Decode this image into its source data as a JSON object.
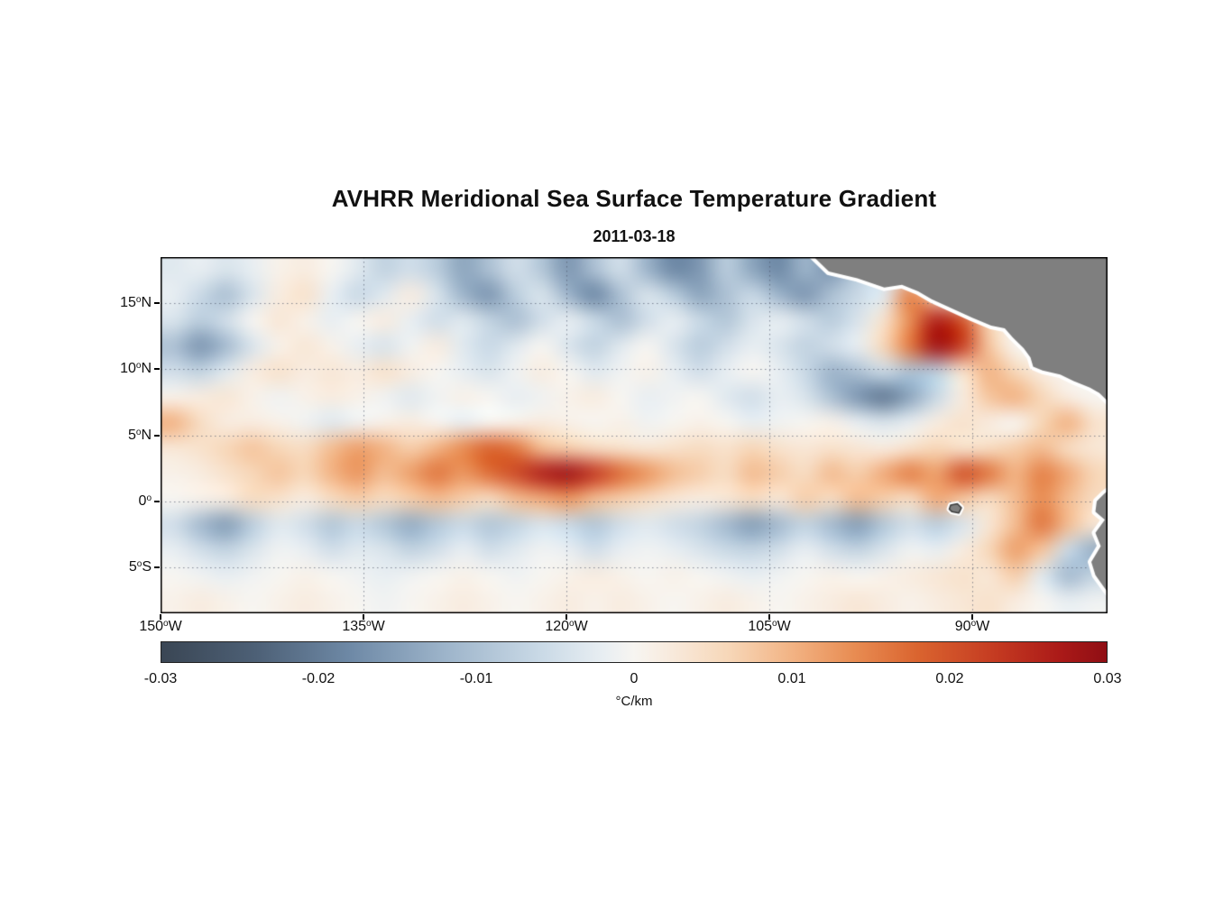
{
  "header": {
    "title": "AVHRR Meridional Sea Surface Temperature Gradient",
    "date": "2011-03-18"
  },
  "chart_data": {
    "type": "heatmap",
    "title": "AVHRR Meridional Sea Surface Temperature Gradient",
    "subtitle_date": "2011-03-18",
    "x_axis": {
      "range": [
        -150,
        -80
      ],
      "ticks": [
        {
          "value": "150",
          "suffix": "W",
          "lon": -150
        },
        {
          "value": "135",
          "suffix": "W",
          "lon": -135
        },
        {
          "value": "120",
          "suffix": "W",
          "lon": -120
        },
        {
          "value": "105",
          "suffix": "W",
          "lon": -105
        },
        {
          "value": "90",
          "suffix": "W",
          "lon": -90
        }
      ]
    },
    "y_axis": {
      "range": [
        18.5,
        -8.5
      ],
      "ticks": [
        {
          "value": "15",
          "suffix": "N",
          "lat": 15
        },
        {
          "value": "10",
          "suffix": "N",
          "lat": 10
        },
        {
          "value": "5",
          "suffix": "N",
          "lat": 5
        },
        {
          "value": "0",
          "suffix": "",
          "lat": 0
        },
        {
          "value": "5",
          "suffix": "S",
          "lat": -5
        }
      ]
    },
    "gridlines": {
      "lats": [
        15,
        10,
        5,
        0,
        -5
      ],
      "lons": [
        -135,
        -120,
        -105,
        -90
      ],
      "style": "dotted"
    },
    "colorbar": {
      "label": "°C/km",
      "min": -0.03,
      "max": 0.03,
      "ticks": [
        {
          "label": "-0.03",
          "value": -0.03
        },
        {
          "label": "-0.02",
          "value": -0.02
        },
        {
          "label": "-0.01",
          "value": -0.01
        },
        {
          "label": "0",
          "value": 0
        },
        {
          "label": "0.01",
          "value": 0.01
        },
        {
          "label": "0.02",
          "value": 0.02
        },
        {
          "label": "0.03",
          "value": 0.03
        }
      ],
      "stops": [
        [
          -0.03,
          "#3a4654"
        ],
        [
          -0.024,
          "#4d6076"
        ],
        [
          -0.018,
          "#6e89a6"
        ],
        [
          -0.012,
          "#9db4ca"
        ],
        [
          -0.006,
          "#c9d9e6"
        ],
        [
          -0.002,
          "#e8eef2"
        ],
        [
          0.0,
          "#f7f5f1"
        ],
        [
          0.002,
          "#f8ece0"
        ],
        [
          0.006,
          "#f7d7b8"
        ],
        [
          0.01,
          "#f2b384"
        ],
        [
          0.014,
          "#e88c52"
        ],
        [
          0.018,
          "#da642f"
        ],
        [
          0.023,
          "#c43a21"
        ],
        [
          0.027,
          "#ab1a18"
        ],
        [
          0.03,
          "#8f0e14"
        ]
      ]
    },
    "grid": {
      "units": "value/1000 = °C/km",
      "lon_start": -149,
      "lon_step": 2,
      "lat_start": 18,
      "lat_step": -2,
      "values": [
        [
          -3,
          -2,
          -4,
          -2,
          1,
          2,
          0,
          -3,
          -7,
          -5,
          -8,
          -14,
          -10,
          -5,
          -9,
          -16,
          -10,
          -5,
          -12,
          -18,
          -16,
          -8,
          -14,
          -18,
          -12,
          -16,
          -8,
          -4,
          -2,
          0,
          0,
          0,
          0,
          0,
          0,
          0
        ],
        [
          -2,
          -6,
          -10,
          -4,
          2,
          4,
          -2,
          -6,
          -3,
          2,
          -4,
          -12,
          -16,
          -8,
          -4,
          -12,
          -18,
          -10,
          -4,
          -8,
          -14,
          -10,
          -6,
          -12,
          -16,
          -10,
          -6,
          -3,
          15,
          6,
          -2,
          0,
          0,
          0,
          0,
          0
        ],
        [
          -4,
          -8,
          -5,
          0,
          3,
          1,
          -2,
          0,
          2,
          -2,
          -5,
          -3,
          -7,
          -10,
          -5,
          -2,
          -6,
          -10,
          -5,
          -2,
          -6,
          -9,
          -4,
          -2,
          -5,
          -8,
          -4,
          4,
          14,
          26,
          20,
          6,
          0,
          0,
          0,
          0
        ],
        [
          -10,
          -16,
          -11,
          -4,
          1,
          3,
          1,
          -2,
          -4,
          -1,
          2,
          -3,
          -6,
          -3,
          0,
          -4,
          -7,
          -3,
          0,
          -4,
          -8,
          -5,
          -2,
          -4,
          -7,
          -5,
          -2,
          6,
          16,
          28,
          22,
          8,
          0,
          0,
          0,
          0
        ],
        [
          -5,
          -7,
          -3,
          2,
          4,
          2,
          3,
          2,
          4,
          2,
          0,
          -2,
          -4,
          -1,
          2,
          0,
          -3,
          -1,
          1,
          -2,
          -5,
          -2,
          0,
          -2,
          -6,
          -12,
          -10,
          -6,
          -10,
          -8,
          4,
          10,
          6,
          2,
          0,
          0
        ],
        [
          1,
          2,
          3,
          1,
          -1,
          1,
          2,
          1,
          -1,
          -3,
          -1,
          1,
          0,
          -2,
          -1,
          1,
          2,
          0,
          -2,
          -1,
          0,
          -3,
          -5,
          -2,
          -4,
          -10,
          -16,
          -20,
          -14,
          -6,
          2,
          8,
          10,
          6,
          2,
          0
        ],
        [
          10,
          5,
          2,
          2,
          1,
          -1,
          -3,
          -1,
          1,
          2,
          0,
          -2,
          0,
          1,
          2,
          1,
          0,
          1,
          -1,
          0,
          1,
          0,
          -2,
          -1,
          0,
          1,
          -2,
          -4,
          -2,
          2,
          4,
          2,
          0,
          6,
          10,
          4
        ],
        [
          3,
          4,
          6,
          8,
          6,
          5,
          9,
          12,
          10,
          7,
          10,
          14,
          18,
          16,
          9,
          7,
          5,
          4,
          3,
          4,
          5,
          4,
          6,
          4,
          3,
          4,
          3,
          2,
          4,
          6,
          4,
          5,
          7,
          9,
          5,
          3
        ],
        [
          1,
          2,
          4,
          6,
          8,
          6,
          10,
          13,
          9,
          12,
          16,
          13,
          17,
          21,
          26,
          28,
          23,
          17,
          13,
          9,
          7,
          5,
          9,
          7,
          5,
          9,
          7,
          11,
          15,
          12,
          20,
          16,
          10,
          15,
          11,
          6
        ],
        [
          0,
          1,
          2,
          5,
          4,
          2,
          5,
          7,
          5,
          7,
          9,
          7,
          5,
          9,
          11,
          13,
          9,
          7,
          5,
          3,
          2,
          3,
          5,
          3,
          7,
          5,
          9,
          7,
          5,
          11,
          8,
          5,
          9,
          14,
          9,
          5
        ],
        [
          -5,
          -11,
          -15,
          -8,
          -3,
          -5,
          -9,
          -6,
          -9,
          -13,
          -9,
          -6,
          -9,
          -7,
          -4,
          -6,
          -9,
          -5,
          -3,
          -5,
          -7,
          -11,
          -15,
          -11,
          -7,
          -11,
          -15,
          -9,
          -5,
          -8,
          -4,
          3,
          9,
          16,
          9,
          3
        ],
        [
          -2,
          -5,
          -7,
          -4,
          -1,
          -2,
          -5,
          -3,
          -4,
          -7,
          -5,
          -2,
          -5,
          -3,
          -1,
          -2,
          -5,
          -2,
          -1,
          -2,
          -4,
          -6,
          -7,
          -5,
          -2,
          -5,
          -7,
          -4,
          -1,
          -2,
          2,
          6,
          12,
          8,
          -6,
          -13
        ],
        [
          0,
          -1,
          -2,
          -1,
          0,
          1,
          0,
          -1,
          -2,
          -1,
          0,
          1,
          0,
          -1,
          0,
          1,
          2,
          1,
          0,
          1,
          0,
          -1,
          -2,
          -1,
          0,
          1,
          0,
          1,
          2,
          3,
          4,
          3,
          7,
          -3,
          -11,
          -7
        ],
        [
          1,
          2,
          1,
          0,
          1,
          2,
          1,
          0,
          -1,
          0,
          1,
          2,
          1,
          0,
          1,
          2,
          1,
          2,
          1,
          0,
          1,
          2,
          1,
          0,
          1,
          2,
          3,
          2,
          1,
          2,
          3,
          4,
          2,
          0,
          -2,
          -1
        ]
      ]
    },
    "land": {
      "color": "#7f7f7f",
      "coast_gap_color": "#ffffff",
      "polygons": [
        {
          "name": "central-america",
          "outline": false,
          "points": [
            [
              -101.8,
              18.6
            ],
            [
              -100.6,
              17.4
            ],
            [
              -98.5,
              16.9
            ],
            [
              -96.5,
              16.2
            ],
            [
              -95.2,
              16.4
            ],
            [
              -94.0,
              15.9
            ],
            [
              -93.0,
              15.3
            ],
            [
              -91.5,
              14.6
            ],
            [
              -90.0,
              13.9
            ],
            [
              -88.6,
              13.3
            ],
            [
              -87.6,
              13.1
            ],
            [
              -87.0,
              12.4
            ],
            [
              -86.2,
              11.6
            ],
            [
              -85.7,
              10.9
            ],
            [
              -85.5,
              10.2
            ],
            [
              -84.8,
              9.9
            ],
            [
              -83.5,
              9.6
            ],
            [
              -82.5,
              9.1
            ],
            [
              -81.3,
              8.6
            ],
            [
              -80.6,
              8.2
            ],
            [
              -80.0,
              7.6
            ],
            [
              -79.4,
              7.0
            ],
            [
              -79.4,
              19.2
            ],
            [
              -102.0,
              19.2
            ]
          ]
        },
        {
          "name": "south-america",
          "outline": false,
          "points": [
            [
              -79.4,
              1.2
            ],
            [
              -80.2,
              0.6
            ],
            [
              -80.8,
              0.0
            ],
            [
              -80.9,
              -0.8
            ],
            [
              -80.2,
              -1.4
            ],
            [
              -80.9,
              -2.4
            ],
            [
              -80.5,
              -3.4
            ],
            [
              -81.2,
              -4.6
            ],
            [
              -80.9,
              -5.6
            ],
            [
              -80.2,
              -6.6
            ],
            [
              -79.6,
              -7.4
            ],
            [
              -79.4,
              -9.0
            ]
          ]
        },
        {
          "name": "galapagos-islands",
          "outline": true,
          "points": [
            [
              -91.6,
              -0.3
            ],
            [
              -91.1,
              -0.2
            ],
            [
              -90.8,
              -0.5
            ],
            [
              -91.0,
              -0.9
            ],
            [
              -91.5,
              -0.8
            ],
            [
              -91.7,
              -0.6
            ]
          ]
        }
      ]
    }
  }
}
